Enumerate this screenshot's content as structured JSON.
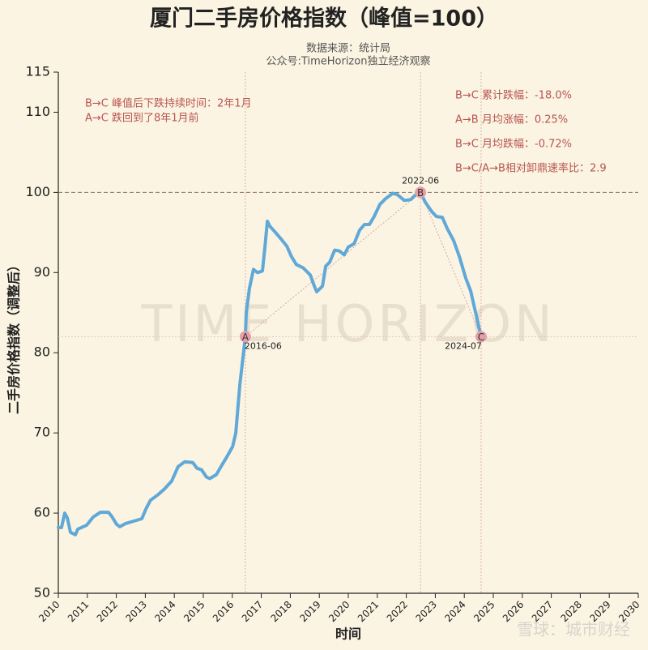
{
  "chart_data": {
    "type": "line",
    "title": "厦门二手房价格指数（峰值=100）",
    "subtitle": [
      "数据来源：统计局",
      "公众号:TimeHorizon独立经济观察"
    ],
    "xlabel": "时间",
    "ylabel": "二手房价格指数（调整后）",
    "watermark": "TIME HORIZON",
    "footer": "雪球：城市财经",
    "xlim": [
      2010,
      2030
    ],
    "xticks": [
      2010,
      2011,
      2012,
      2013,
      2014,
      2015,
      2016,
      2017,
      2018,
      2019,
      2020,
      2021,
      2022,
      2023,
      2024,
      2025,
      2026,
      2027,
      2028,
      2029,
      2030
    ],
    "ylim": [
      50,
      115
    ],
    "yticks": [
      50,
      60,
      70,
      80,
      90,
      100,
      110,
      115
    ],
    "series": [
      {
        "name": "二手房价格指数",
        "color": "#5fa8d8",
        "x": [
          2010.0,
          2010.11,
          2010.22,
          2010.31,
          2010.42,
          2010.59,
          2010.67,
          2010.98,
          2011.2,
          2011.45,
          2011.73,
          2011.84,
          2012.01,
          2012.12,
          2012.32,
          2012.6,
          2012.88,
          2013.02,
          2013.18,
          2013.44,
          2013.66,
          2013.91,
          2014.13,
          2014.36,
          2014.64,
          2014.78,
          2014.94,
          2015.11,
          2015.22,
          2015.45,
          2015.61,
          2015.81,
          2016.01,
          2016.12,
          2016.26,
          2016.45,
          2016.48,
          2016.59,
          2016.73,
          2016.87,
          2017.04,
          2017.12,
          2017.21,
          2017.29,
          2017.49,
          2017.68,
          2017.88,
          2018.04,
          2018.21,
          2018.44,
          2018.69,
          2018.83,
          2018.91,
          2019.11,
          2019.22,
          2019.36,
          2019.53,
          2019.69,
          2019.86,
          2020.0,
          2020.2,
          2020.39,
          2020.56,
          2020.73,
          2020.89,
          2021.09,
          2021.28,
          2021.54,
          2021.7,
          2021.93,
          2022.15,
          2022.32,
          2022.49,
          2022.65,
          2022.88,
          2023.04,
          2023.24,
          2023.41,
          2023.63,
          2023.83,
          2024.05,
          2024.22,
          2024.39,
          2024.58
        ],
        "values": [
          58.2,
          58.2,
          60,
          59.4,
          57.6,
          57.3,
          58,
          58.5,
          59.5,
          60.1,
          60.1,
          59.6,
          58.6,
          58.3,
          58.7,
          59,
          59.3,
          60.5,
          61.6,
          62.3,
          63,
          64,
          65.8,
          66.4,
          66.3,
          65.6,
          65.4,
          64.5,
          64.3,
          64.8,
          65.8,
          67,
          68.3,
          70,
          76,
          82,
          85,
          88,
          90.4,
          90,
          90.2,
          93,
          96.4,
          95.8,
          95,
          94.2,
          93.3,
          92,
          91,
          90.6,
          89.7,
          88.3,
          87.6,
          88.3,
          90.8,
          91.3,
          92.8,
          92.7,
          92.2,
          93.2,
          93.6,
          95.3,
          96,
          96,
          97,
          98.5,
          99.2,
          99.9,
          99.7,
          99,
          99.1,
          99.7,
          100,
          98.8,
          97.6,
          97,
          96.9,
          95.5,
          94,
          92,
          89.3,
          87.7,
          85,
          82
        ]
      }
    ],
    "points": [
      {
        "label": "A",
        "date": "2016-06",
        "x": 2016.45,
        "y": 82
      },
      {
        "label": "B",
        "date": "2022-06",
        "x": 2022.49,
        "y": 100
      },
      {
        "label": "C",
        "date": "2024-07",
        "x": 2024.58,
        "y": 82
      }
    ],
    "annotations_left": [
      "B→C 峰值后下跌持续时间：2年1月",
      "A→C 跌回到了8年1月前"
    ],
    "annotations_right": [
      "B→C 累计跌幅：-18.0%",
      "A→B 月均涨幅：0.25%",
      "B→C 月均跌幅：-0.72%",
      "B→C/A→B相对卸鼎速率比：2.9"
    ]
  }
}
